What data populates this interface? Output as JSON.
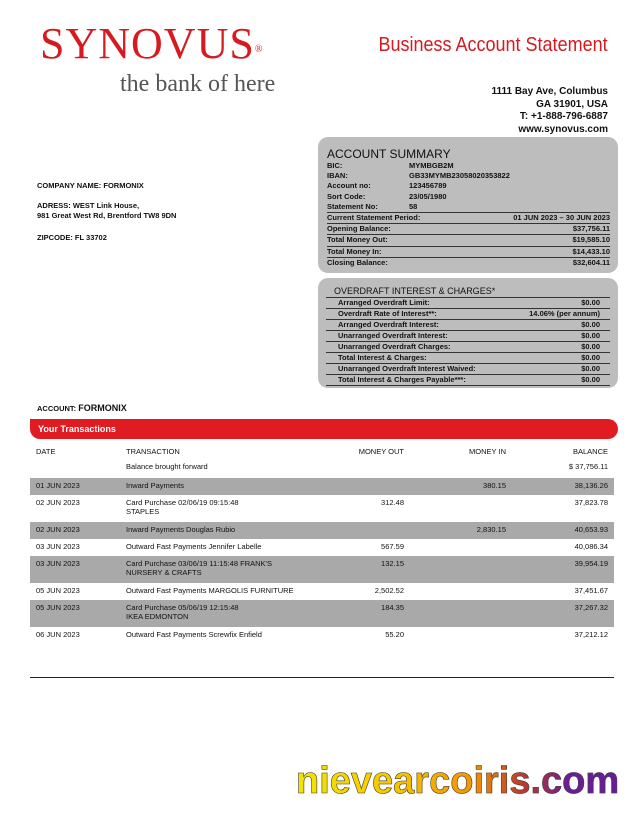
{
  "header": {
    "logo": "SYNOVUS",
    "logo_mark": "®",
    "tagline": "the bank of here",
    "title": "Business Account Statement",
    "address": [
      "1111 Bay Ave, Columbus",
      "GA 31901, USA",
      "T: +1-888-796-6887",
      "www.synovus.com"
    ]
  },
  "company": {
    "name": "COMPANY NAME: FORMONIX",
    "address": [
      "ADRESS: WEST Link House,",
      "981 Great West Rd, Brentford TW8 9DN"
    ],
    "zipcode": "ZIPCODE: FL 33702"
  },
  "account_summary": {
    "title": "ACCOUNT SUMMARY",
    "details": [
      [
        "BIC:",
        "MYMBGB2M"
      ],
      [
        "IBAN:",
        "GB33MYMB23058020353822"
      ],
      [
        "Account no:",
        "123456789"
      ],
      [
        "Sort Code:",
        "23/05/1980"
      ],
      [
        "Statement No:",
        "58"
      ]
    ],
    "totals": [
      [
        "Current Statement Period:",
        "01 JUN 2023 – 30 JUN 2023"
      ],
      [
        "Opening Balance:",
        "$37,756.11"
      ],
      [
        "Total Money Out:",
        "$19,585.10"
      ],
      [
        "Total Money In:",
        "$14,433.10"
      ],
      [
        "Closing Balance:",
        "$32,604.11"
      ]
    ]
  },
  "overdraft": {
    "title": "OVERDRAFT INTEREST & CHARGES*",
    "rows": [
      [
        "Arranged Overdraft Limit:",
        "$0.00"
      ],
      [
        "Overdraft Rate of Interest**:",
        "14.06% (per annum)"
      ],
      [
        "Arranged Overdraft Interest:",
        "$0.00"
      ],
      [
        "Unarranged Overdraft Interest:",
        "$0.00"
      ],
      [
        "Unarranged Overdraft Charges:",
        "$0.00"
      ],
      [
        "Total Interest & Charges:",
        "$0.00"
      ],
      [
        "Unarranged Overdraft Interest Waived:",
        "$0.00"
      ],
      [
        "Total Interest & Charges Payable***:",
        "$0.00"
      ]
    ]
  },
  "account": {
    "label": "ACCOUNT:",
    "name": "FORMONIX"
  },
  "transactions": {
    "banner": "Your Transactions",
    "headers": [
      "DATE",
      "TRANSACTION",
      "MONEY OUT",
      "MONEY IN",
      "BALANCE"
    ],
    "brought_forward": {
      "transaction": "Balance brought forward",
      "balance": "$ 37,756.11"
    },
    "rows": [
      {
        "date": "01 JUN 2023",
        "transaction": [
          "Inward Payments"
        ],
        "money_in": "380.15",
        "balance": "38,136.26"
      },
      {
        "date": "02 JUN 2023",
        "transaction": [
          "Card Purchase 02/06/19 09:15:48",
          "STAPLES"
        ],
        "money_out": "312.48",
        "balance": "37,823.78"
      },
      {
        "date": "02 JUN 2023",
        "transaction": [
          "Inward Payments Douglas Rubio"
        ],
        "money_in": "2,830.15",
        "balance": "40,653.93"
      },
      {
        "date": "03 JUN 2023",
        "transaction": [
          "Outward Fast Payments Jennifer Labelle"
        ],
        "money_out": "567.59",
        "balance": "40,086.34"
      },
      {
        "date": "03 JUN 2023",
        "transaction": [
          "Card Purchase 03/06/19 11:15:48 FRANK'S",
          "NURSERY & CRAFTS"
        ],
        "money_out": "132.15",
        "balance": "39,954.19"
      },
      {
        "date": "05 JUN 2023",
        "transaction": [
          "Outward Fast Payments MARGOLIS FURNITURE"
        ],
        "money_out": "2,502.52",
        "balance": "37,451.67"
      },
      {
        "date": "05 JUN 2023",
        "transaction": [
          "Card Purchase 05/06/19 12:15:48",
          "IKEA EDMONTON"
        ],
        "money_out": "184.35",
        "balance": "37,267.32"
      },
      {
        "date": "06 JUN 2023",
        "transaction": [
          "Outward Fast Payments Screwfix Enfield"
        ],
        "money_out": "55.20",
        "balance": "37,212.12"
      }
    ]
  },
  "watermark": "nievearcoiris.com"
}
